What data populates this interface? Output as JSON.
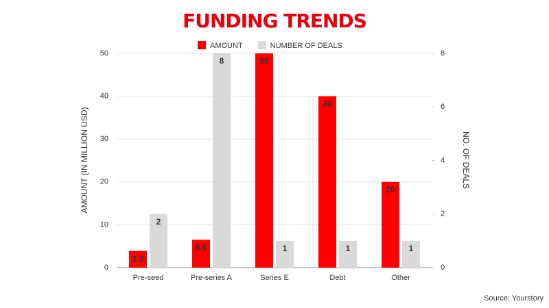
{
  "chart_data": {
    "type": "bar",
    "title": "FUNDING TRENDS",
    "y_label": "AMOUNT (IN MILLION USD)",
    "y2_label": "NO. OF DEALS",
    "source": "Source: Yourstory",
    "categories": [
      "Pre-seed",
      "Pre-series A",
      "Series E",
      "Debt",
      "Other"
    ],
    "series": [
      {
        "name": "AMOUNT",
        "color": "#ff0000",
        "values": [
          3.9,
          6.5,
          50,
          40,
          20
        ]
      },
      {
        "name": "NUMBER OF DEALS",
        "color": "#d9d9d9",
        "axis": "y2",
        "values": [
          2,
          8,
          1,
          1,
          1
        ]
      }
    ],
    "ylim": [
      0,
      50
    ],
    "yticks": [
      0,
      10,
      20,
      30,
      40,
      50
    ],
    "y2lim": [
      0,
      8
    ],
    "y2ticks": [
      0,
      2,
      4,
      6,
      8
    ],
    "grid": true
  }
}
